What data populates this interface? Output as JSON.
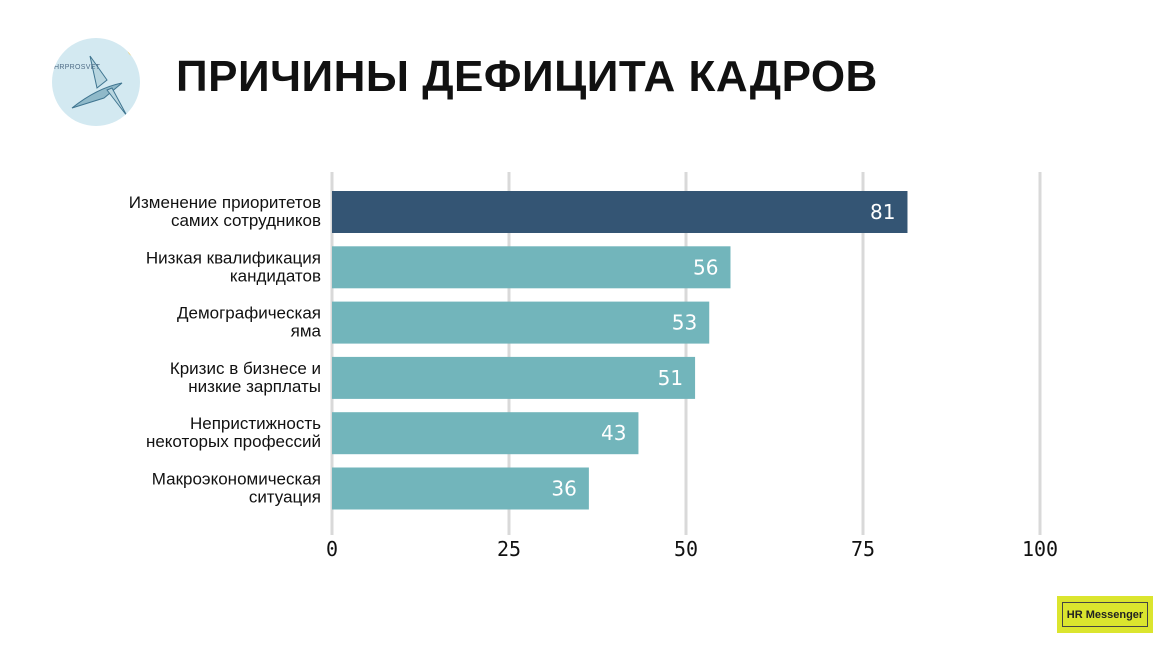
{
  "logo": {
    "text": "HRPROSVET"
  },
  "title": "ПРИЧИНЫ ДЕФИЦИТА КАДРОВ",
  "badge": "HR Messenger",
  "chart_data": {
    "type": "bar",
    "orientation": "horizontal",
    "categories": [
      [
        "Изменение приоритетов",
        "самих сотрудников"
      ],
      [
        "Низкая квалификация",
        "кандидатов"
      ],
      [
        "Демографическая",
        "яма"
      ],
      [
        "Кризис в бизнесе и",
        "низкие зарплаты"
      ],
      [
        "Непристижность",
        "некоторых профессий"
      ],
      [
        "Макроэкономическая",
        "ситуация"
      ]
    ],
    "values": [
      81,
      56,
      53,
      51,
      43,
      36
    ],
    "xlim": [
      0,
      100
    ],
    "ticks": [
      0,
      25,
      50,
      75,
      100
    ],
    "grid": true,
    "colors": {
      "highlight": "#345574",
      "default": "#72b5bb",
      "grid": "#d9d9d9"
    }
  }
}
